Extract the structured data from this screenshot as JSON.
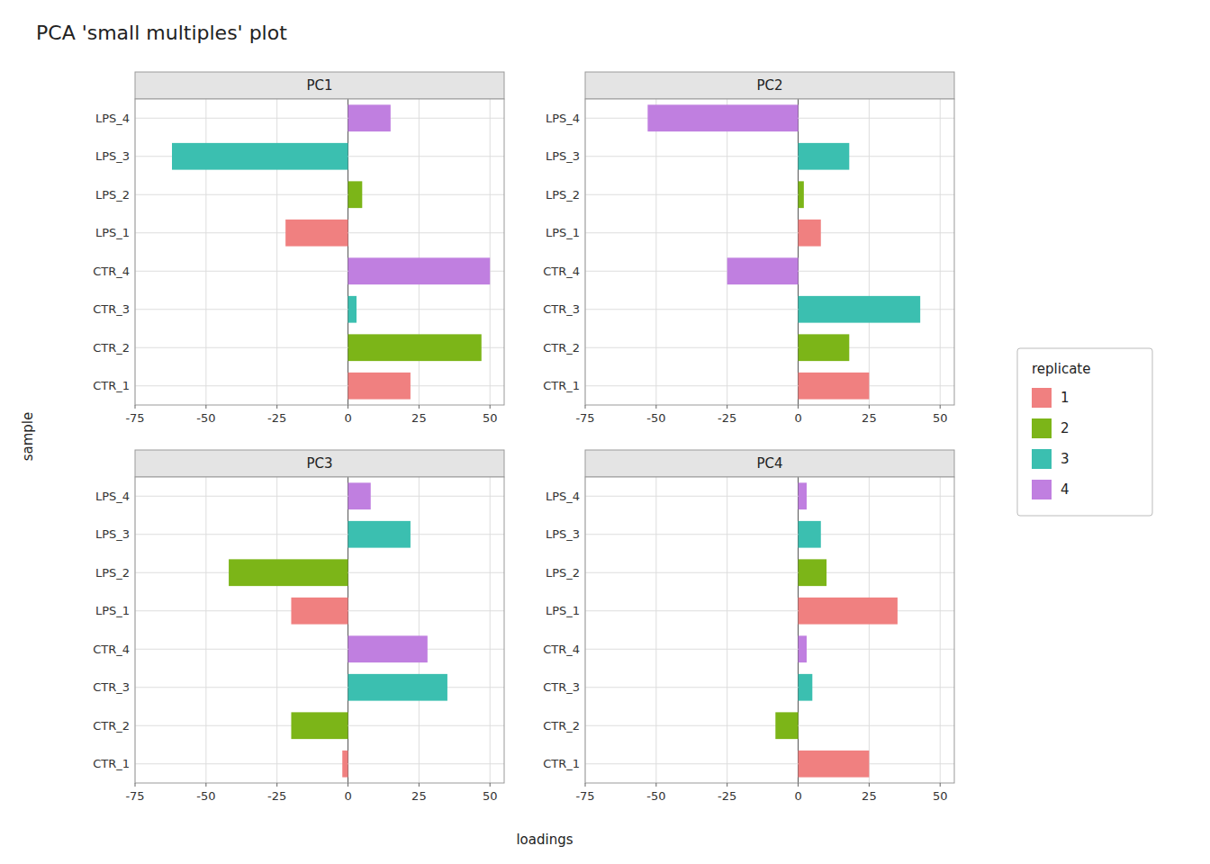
{
  "title": "PCA 'small multiples' plot",
  "xlabel": "loadings",
  "ylabel": "sample",
  "legend_title": "replicate",
  "legend": "right",
  "chart_data": [
    {
      "type": "bar",
      "orientation": "horizontal",
      "stacked": true,
      "title": "PC1",
      "categories": [
        "CTR_1",
        "CTR_2",
        "CTR_3",
        "CTR_4",
        "LPS_1",
        "LPS_2",
        "LPS_3",
        "LPS_4"
      ],
      "series": [
        {
          "name": "1",
          "color": "#F08080",
          "values": [
            22,
            null,
            null,
            null,
            -22,
            null,
            null,
            null
          ]
        },
        {
          "name": "2",
          "color": "#7CB518",
          "values": [
            null,
            47,
            null,
            null,
            null,
            5,
            null,
            null
          ]
        },
        {
          "name": "3",
          "color": "#3BBFB0",
          "values": [
            null,
            null,
            3,
            null,
            null,
            null,
            -62,
            null
          ]
        },
        {
          "name": "4",
          "color": "#C07FE0",
          "values": [
            null,
            null,
            null,
            50,
            null,
            null,
            null,
            15
          ]
        }
      ],
      "xlim": [
        -75,
        55
      ],
      "xticks": [
        -75,
        -50,
        -25,
        0,
        25,
        50
      ],
      "grid": true
    },
    {
      "type": "bar",
      "orientation": "horizontal",
      "stacked": true,
      "title": "PC2",
      "categories": [
        "CTR_1",
        "CTR_2",
        "CTR_3",
        "CTR_4",
        "LPS_1",
        "LPS_2",
        "LPS_3",
        "LPS_4"
      ],
      "series": [
        {
          "name": "1",
          "color": "#F08080",
          "values": [
            25,
            null,
            null,
            null,
            8,
            null,
            null,
            null
          ]
        },
        {
          "name": "2",
          "color": "#7CB518",
          "values": [
            null,
            18,
            null,
            null,
            null,
            2,
            null,
            null
          ]
        },
        {
          "name": "3",
          "color": "#3BBFB0",
          "values": [
            null,
            null,
            43,
            null,
            null,
            null,
            18,
            null
          ]
        },
        {
          "name": "4",
          "color": "#C07FE0",
          "values": [
            null,
            null,
            null,
            -25,
            null,
            null,
            null,
            -53
          ]
        }
      ],
      "xlim": [
        -75,
        55
      ],
      "xticks": [
        -75,
        -50,
        -25,
        0,
        25,
        50
      ],
      "grid": true
    },
    {
      "type": "bar",
      "orientation": "horizontal",
      "stacked": true,
      "title": "PC3",
      "categories": [
        "CTR_1",
        "CTR_2",
        "CTR_3",
        "CTR_4",
        "LPS_1",
        "LPS_2",
        "LPS_3",
        "LPS_4"
      ],
      "series": [
        {
          "name": "1",
          "color": "#F08080",
          "values": [
            -2,
            null,
            null,
            null,
            -20,
            null,
            null,
            null
          ]
        },
        {
          "name": "2",
          "color": "#7CB518",
          "values": [
            null,
            -20,
            null,
            null,
            null,
            -42,
            null,
            null
          ]
        },
        {
          "name": "3",
          "color": "#3BBFB0",
          "values": [
            null,
            null,
            35,
            null,
            null,
            null,
            22,
            null
          ]
        },
        {
          "name": "4",
          "color": "#C07FE0",
          "values": [
            null,
            null,
            null,
            28,
            null,
            null,
            null,
            8
          ]
        }
      ],
      "xlim": [
        -75,
        55
      ],
      "xticks": [
        -75,
        -50,
        -25,
        0,
        25,
        50
      ],
      "grid": true
    },
    {
      "type": "bar",
      "orientation": "horizontal",
      "stacked": true,
      "title": "PC4",
      "categories": [
        "CTR_1",
        "CTR_2",
        "CTR_3",
        "CTR_4",
        "LPS_1",
        "LPS_2",
        "LPS_3",
        "LPS_4"
      ],
      "series": [
        {
          "name": "1",
          "color": "#F08080",
          "values": [
            25,
            null,
            null,
            null,
            35,
            null,
            null,
            null
          ]
        },
        {
          "name": "2",
          "color": "#7CB518",
          "values": [
            null,
            -8,
            null,
            null,
            null,
            10,
            null,
            null
          ]
        },
        {
          "name": "3",
          "color": "#3BBFB0",
          "values": [
            null,
            null,
            5,
            null,
            null,
            null,
            8,
            null
          ]
        },
        {
          "name": "4",
          "color": "#C07FE0",
          "values": [
            null,
            null,
            null,
            3,
            null,
            null,
            null,
            3
          ]
        }
      ],
      "xlim": [
        -75,
        55
      ],
      "xticks": [
        -75,
        -50,
        -25,
        0,
        25,
        50
      ],
      "grid": true
    }
  ]
}
